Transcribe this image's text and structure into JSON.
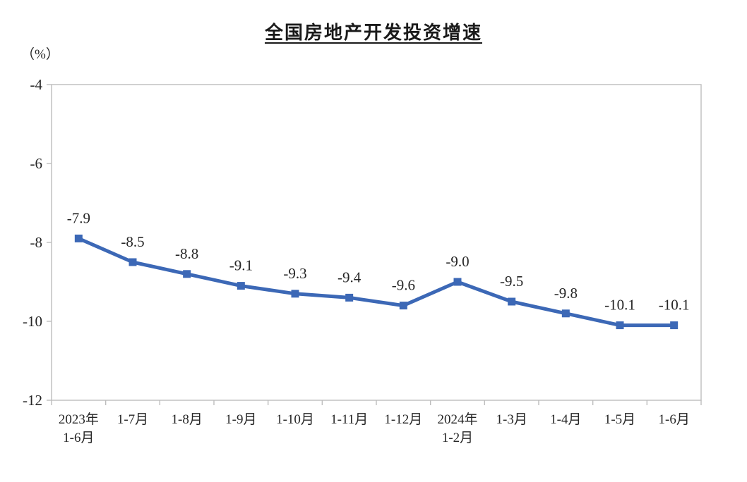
{
  "page": {
    "title": "全国房地产开发投资增速",
    "unit_label": "（%）"
  },
  "chart_data": {
    "type": "line",
    "title": "全国房地产开发投资增速",
    "ylabel": "（%）",
    "xlabel": "",
    "categories": [
      [
        "2023年",
        "1-6月"
      ],
      [
        "1-7月"
      ],
      [
        "1-8月"
      ],
      [
        "1-9月"
      ],
      [
        "1-10月"
      ],
      [
        "1-11月"
      ],
      [
        "1-12月"
      ],
      [
        "2024年",
        "1-2月"
      ],
      [
        "1-3月"
      ],
      [
        "1-4月"
      ],
      [
        "1-5月"
      ],
      [
        "1-6月"
      ]
    ],
    "series": [
      {
        "name": "全国房地产开发投资增速",
        "values": [
          -7.9,
          -8.5,
          -8.8,
          -9.1,
          -9.3,
          -9.4,
          -9.6,
          -9.0,
          -9.5,
          -9.8,
          -10.1,
          -10.1
        ],
        "value_labels": [
          "-7.9",
          "-8.5",
          "-8.8",
          "-9.1",
          "-9.3",
          "-9.4",
          "-9.6",
          "-9.0",
          "-9.5",
          "-9.8",
          "-10.1",
          "-10.1"
        ]
      }
    ],
    "y_ticks": [
      -4,
      -6,
      -8,
      -10,
      -12
    ],
    "ylim": [
      -12,
      -4
    ],
    "grid": false,
    "legend_position": "none",
    "marker": "square",
    "colors": {
      "line": "#3c68b6",
      "axis": "#bdbdbd",
      "text": "#262626",
      "title": "#1a1a1a"
    }
  }
}
